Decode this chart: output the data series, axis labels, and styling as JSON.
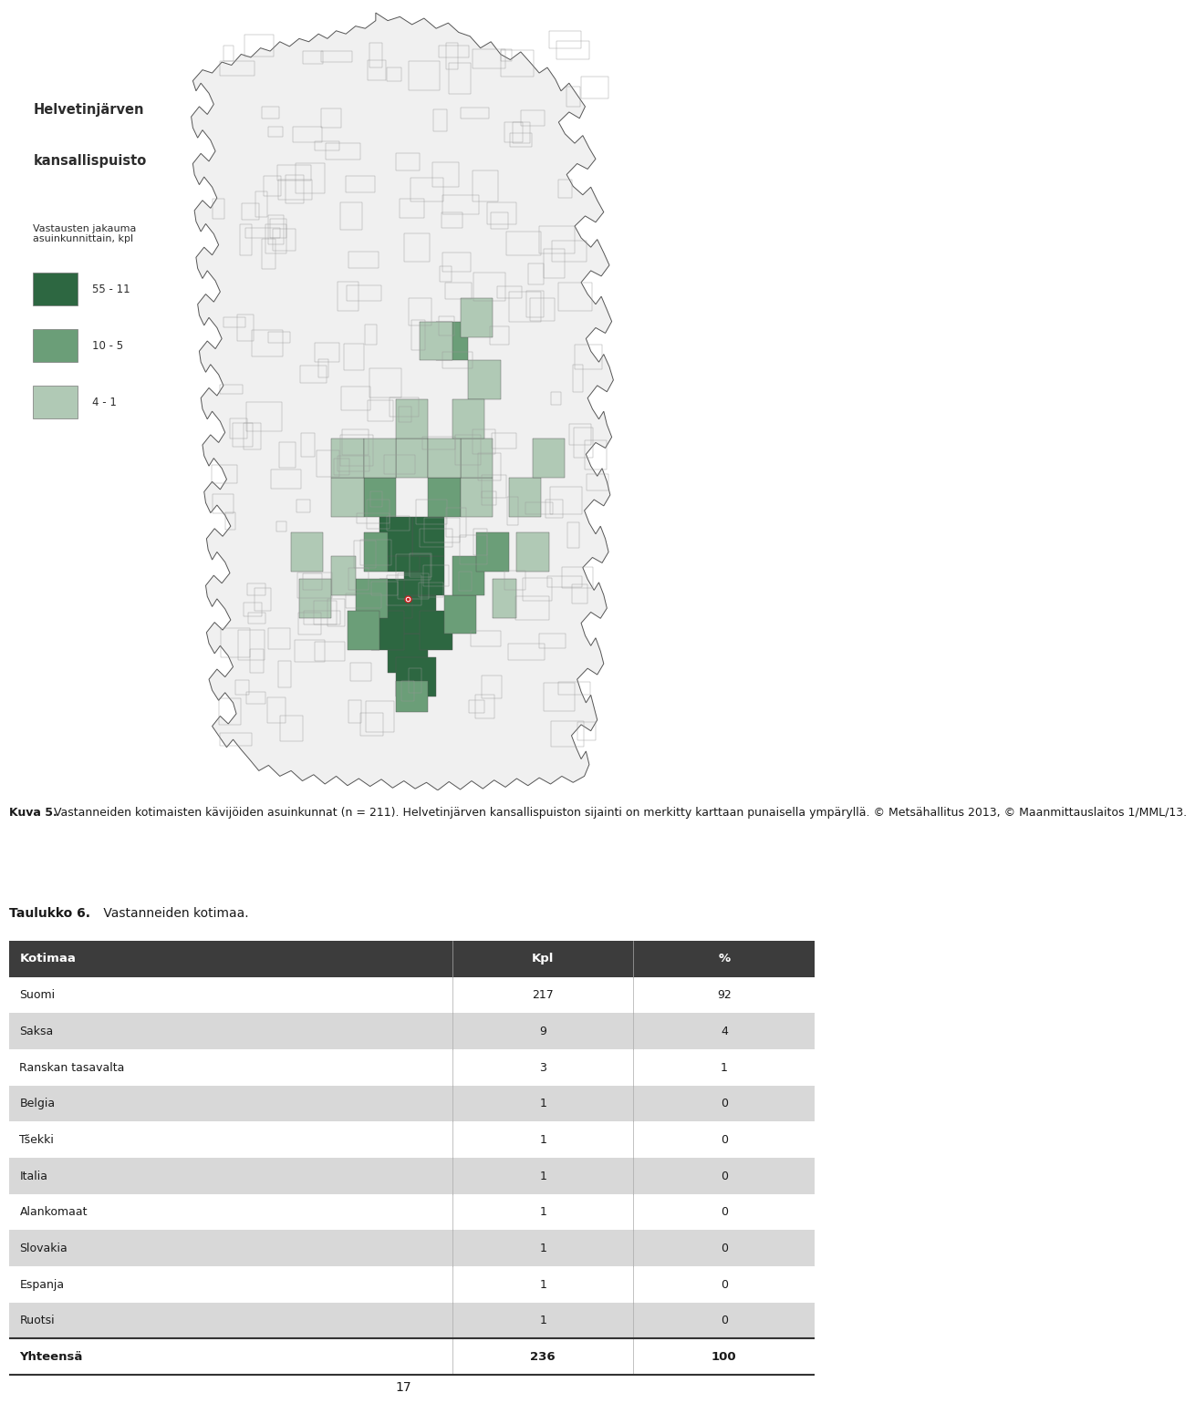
{
  "page_background": "#ffffff",
  "caption_bold": "Kuva 5.",
  "caption_text": " Vastanneiden kotimaisten kävijöiden asuinkunnat (n = 211). Helvetinjärven kansallispuiston sijainti on merkitty karttaan punaisella ympäryllä. © Metsähallitus 2013, © Maanmittauslaitos 1/MML/13.",
  "table_title_bold": "Taulukko 6.",
  "table_title_text": " Vastanneiden kotimaa.",
  "table_header": [
    "Kotimaa",
    "Kpl",
    "%"
  ],
  "table_rows": [
    [
      "Suomi",
      "217",
      "92"
    ],
    [
      "Saksa",
      "9",
      "4"
    ],
    [
      "Ranskan tasavalta",
      "3",
      "1"
    ],
    [
      "Belgia",
      "1",
      "0"
    ],
    [
      "Tšekki",
      "1",
      "0"
    ],
    [
      "Italia",
      "1",
      "0"
    ],
    [
      "Alankomaat",
      "1",
      "0"
    ],
    [
      "Slovakia",
      "1",
      "0"
    ],
    [
      "Espanja",
      "1",
      "0"
    ],
    [
      "Ruotsi",
      "1",
      "0"
    ]
  ],
  "table_footer": [
    "Yhteensä",
    "236",
    "100"
  ],
  "header_bg": "#3c3c3c",
  "header_fg": "#ffffff",
  "row_odd_bg": "#ffffff",
  "row_even_bg": "#d8d8d8",
  "footer_bg": "#ffffff",
  "page_number": "17",
  "legend_title1": "Helvetinjärven",
  "legend_title2": "kansallispuisto",
  "legend_subtitle": "Vastausten jakauma\nasuinkunnittain, kpl",
  "legend_items": [
    {
      "color": "#2d6741",
      "label": "55 - 11"
    },
    {
      "color": "#6b9e78",
      "label": "10 - 5"
    },
    {
      "color": "#b0c9b5",
      "label": "4 - 1"
    }
  ],
  "finland_outline_color": "#555555",
  "finland_fill_color": "#f0f0f0",
  "municipality_line_color": "#888888"
}
